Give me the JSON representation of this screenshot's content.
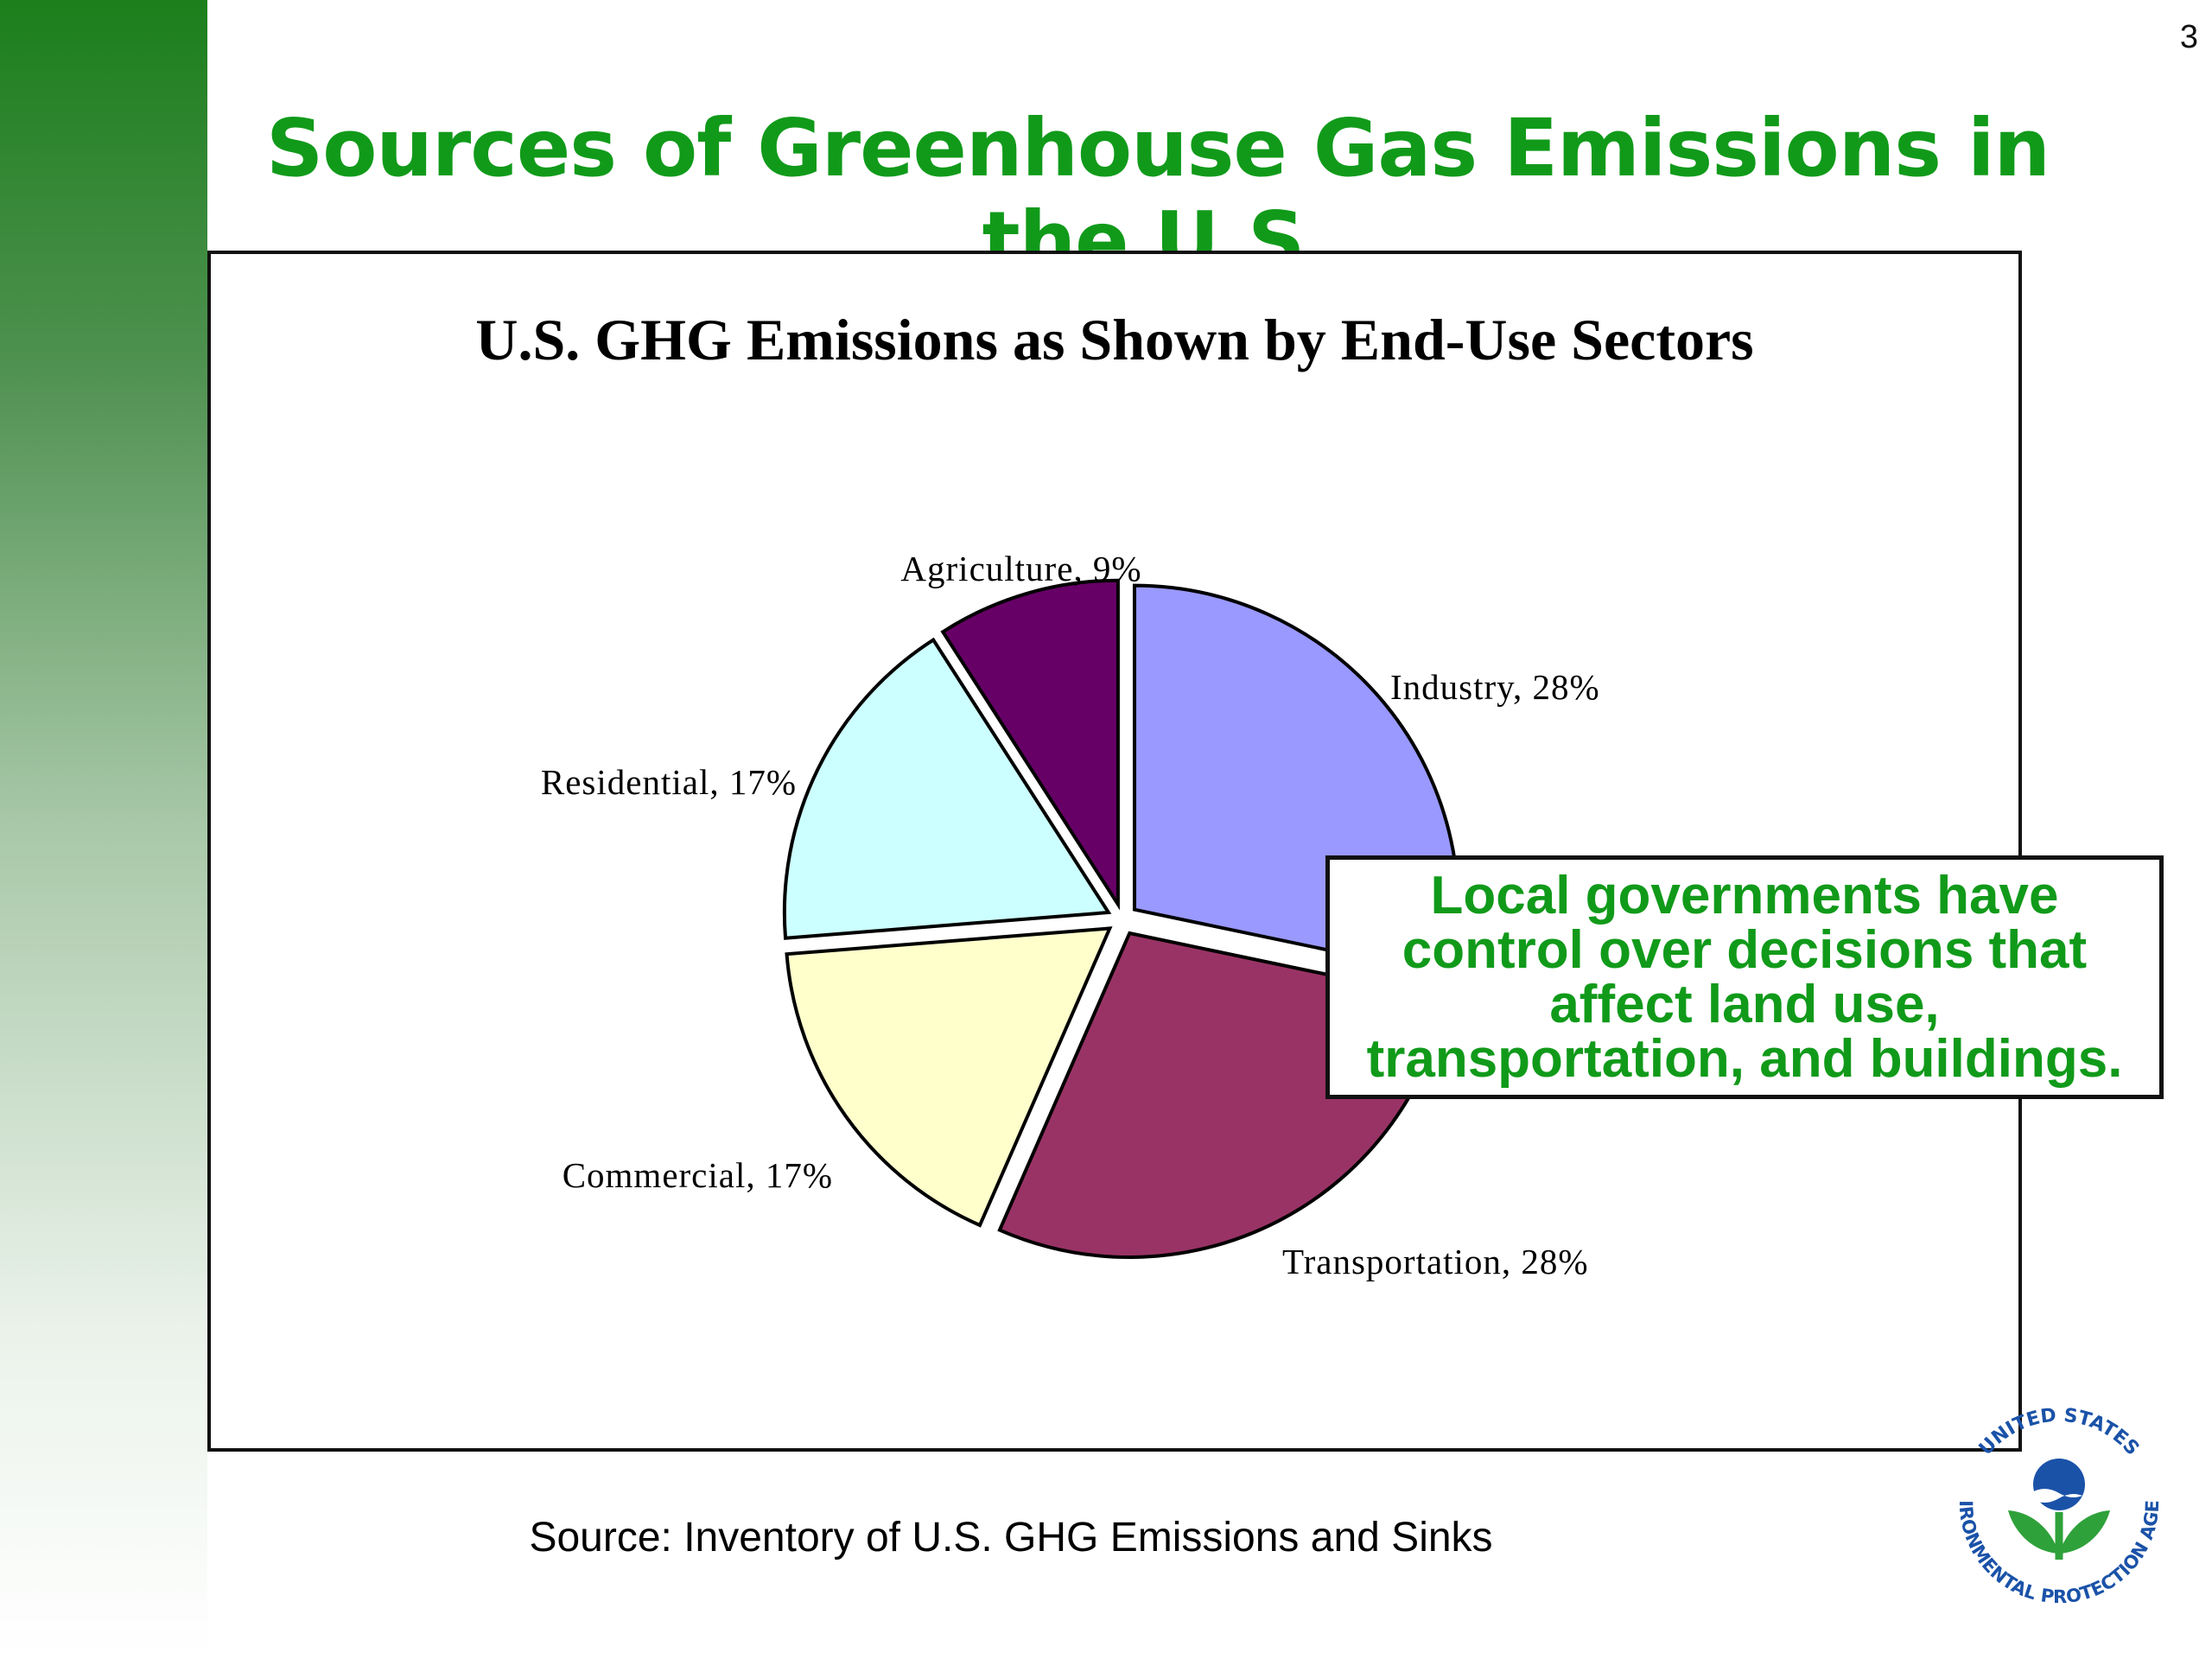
{
  "slide": {
    "page_number": "3",
    "title": "Sources of Greenhouse Gas Emissions in the U.S.",
    "callout": [
      "Local governments have",
      "control over decisions that",
      "affect land use,",
      "transportation, and buildings."
    ],
    "source": "Source: Inventory of U.S. GHG Emissions and Sinks",
    "logo": {
      "icon": "epa-seal-icon",
      "top_text": "UNITED STATES",
      "left_text": "ENVIRONMENTAL",
      "bottom_text": "PROTECTION AGENCY"
    }
  },
  "colors": {
    "title_green": "#119a1a",
    "industry": "#9999ff",
    "transportation": "#993366",
    "commercial": "#ffffcc",
    "residential": "#ccffff",
    "agriculture": "#660066"
  },
  "chart_data": {
    "type": "pie",
    "title": "U.S. GHG Emissions as Shown by End-Use Sectors",
    "slices": [
      {
        "name": "Industry",
        "value": 28,
        "label": "Industry, 28%",
        "color": "#9999ff",
        "exploded": true
      },
      {
        "name": "Transportation",
        "value": 28,
        "label": "Transportation, 28%",
        "color": "#993366",
        "exploded": true
      },
      {
        "name": "Commercial",
        "value": 17,
        "label": "Commercial, 17%",
        "color": "#ffffcc",
        "exploded": true
      },
      {
        "name": "Residential",
        "value": 17,
        "label": "Residential, 17%",
        "color": "#ccffff",
        "exploded": true
      },
      {
        "name": "Agriculture",
        "value": 9,
        "label": "Agriculture, 9%",
        "color": "#660066",
        "exploded": true
      }
    ],
    "start": "12 o'clock",
    "direction": "clockwise",
    "legend": "none"
  }
}
